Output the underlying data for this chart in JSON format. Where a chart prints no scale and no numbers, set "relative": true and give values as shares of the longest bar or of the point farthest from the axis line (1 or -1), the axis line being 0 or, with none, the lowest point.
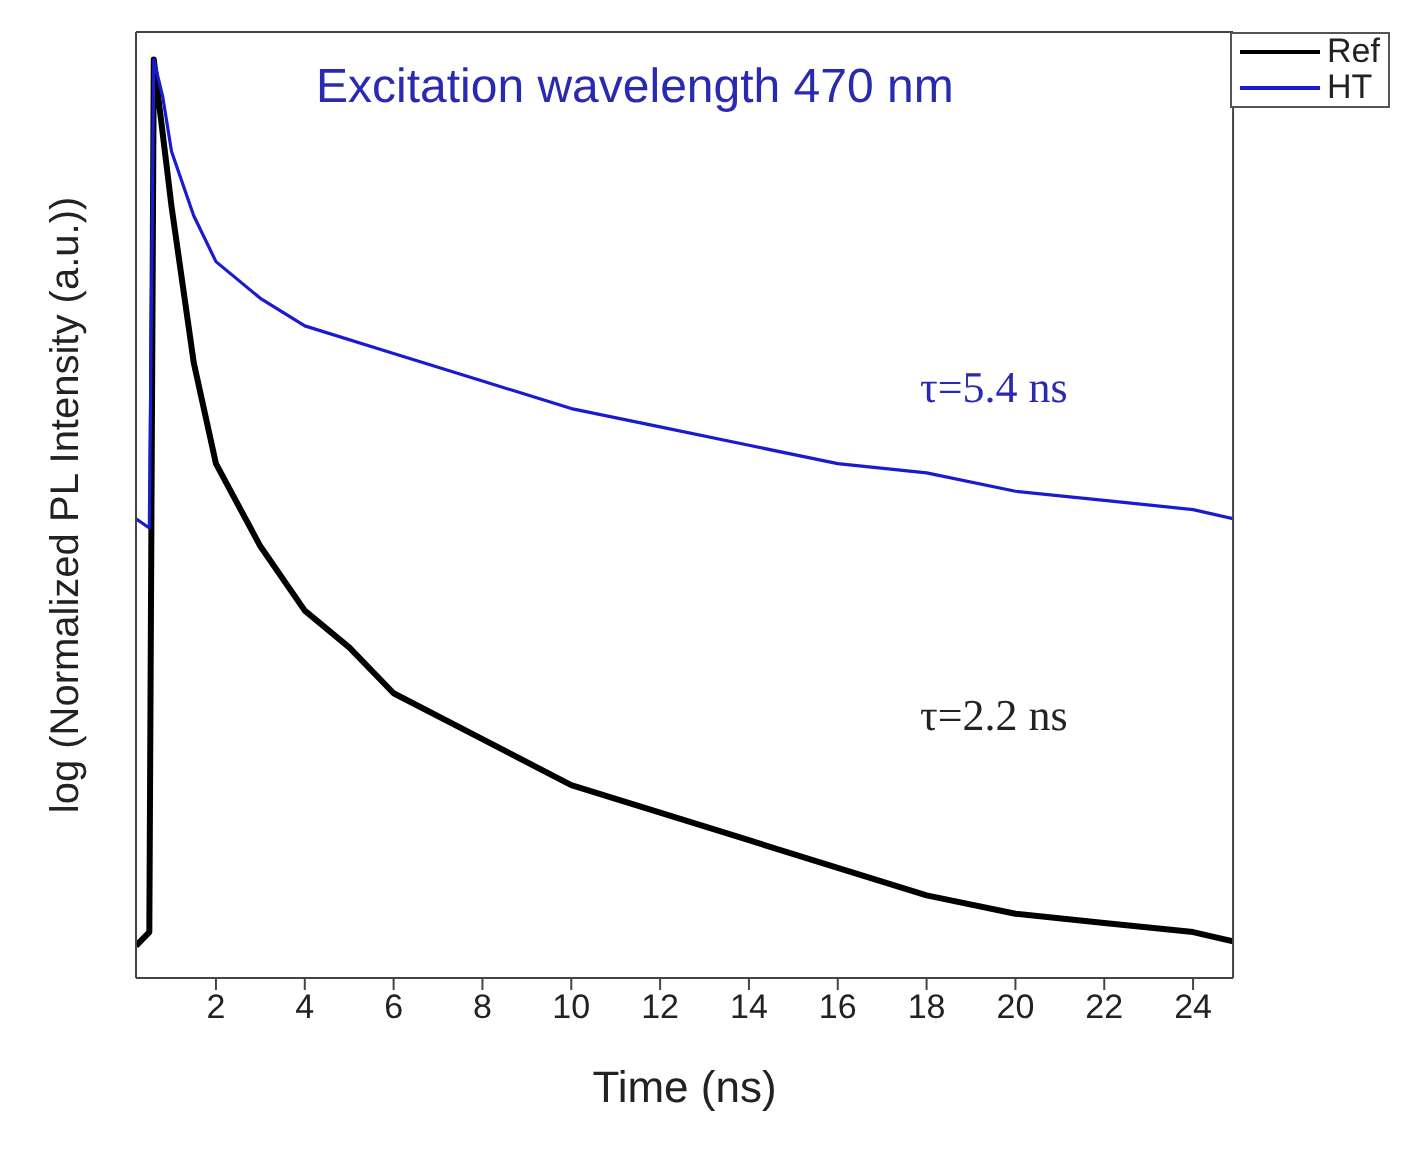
{
  "chart_data": {
    "type": "line",
    "title": "Excitation wavelength 470 nm",
    "xlabel": "Time (ns)",
    "ylabel": "log (Normalized PL Intensity (a.u.))",
    "relative": true,
    "xlim": [
      0.2,
      24.9
    ],
    "xticks": [
      2,
      4,
      6,
      8,
      10,
      12,
      14,
      16,
      18,
      20,
      22,
      24
    ],
    "legend": "top right",
    "series": [
      {
        "name": "Ref",
        "color": "#000000",
        "x": [
          0.2,
          0.5,
          0.6,
          0.8,
          1,
          1.5,
          2,
          3,
          4,
          5,
          6,
          8,
          10,
          12,
          14,
          16,
          18,
          20,
          22,
          24,
          24.9
        ],
        "values": [
          0.035,
          0.05,
          1,
          0.92,
          0.84,
          0.67,
          0.56,
          0.47,
          0.4,
          0.36,
          0.31,
          0.26,
          0.21,
          0.18,
          0.15,
          0.12,
          0.09,
          0.07,
          0.06,
          0.05,
          0.04
        ]
      },
      {
        "name": "HT",
        "color": "#1a1ad0",
        "x": [
          0.2,
          0.5,
          0.6,
          0.8,
          1,
          1.5,
          2,
          3,
          4,
          6,
          8,
          10,
          12,
          14,
          16,
          18,
          20,
          22,
          24,
          24.9
        ],
        "values": [
          0.5,
          0.49,
          1,
          0.96,
          0.9,
          0.83,
          0.78,
          0.74,
          0.71,
          0.68,
          0.65,
          0.62,
          0.6,
          0.58,
          0.56,
          0.55,
          0.53,
          0.52,
          0.51,
          0.5
        ]
      }
    ],
    "annotations": [
      "τ=5.4 ns",
      "τ=2.2 ns"
    ]
  }
}
